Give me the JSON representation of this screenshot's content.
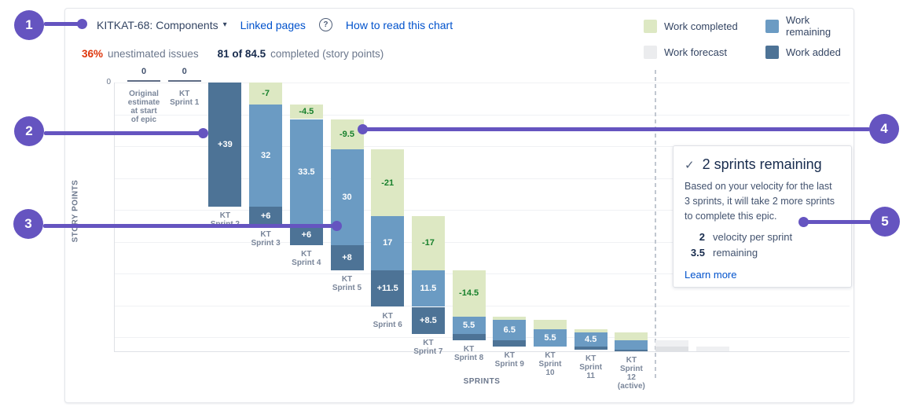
{
  "header": {
    "epic_selector": "KITKAT-68: Components",
    "linked_pages": "Linked pages",
    "how_to_read": "How to read this chart",
    "unestimated_pct": "36%",
    "unestimated_label": "unestimated issues",
    "completed_ratio": "81 of 84.5",
    "completed_label": "completed (story points)"
  },
  "icons": {
    "caret": "▾",
    "help": "?",
    "check": "✓"
  },
  "legend": {
    "items": [
      {
        "label": "Work completed",
        "color": "#dde8c3"
      },
      {
        "label": "Work remaining",
        "color": "#6b9bc3"
      },
      {
        "label": "Work forecast",
        "color": "#ebecee"
      },
      {
        "label": "Work added",
        "color": "#4d7396"
      }
    ]
  },
  "colors": {
    "completed": "#dde8c3",
    "remaining": "#6b9bc3",
    "added": "#4d7396",
    "forecast_light": "#eff0f2",
    "forecast_dark": "#dfe1e4",
    "completed_text": "#17802c",
    "segment_text": "#ffffff",
    "accent_purple": "#6554c0",
    "link": "#0052cc",
    "alert_red": "#de350b"
  },
  "chart_data": {
    "type": "bar",
    "subtype": "stacked-epic-burndown",
    "xlabel": "SPRINTS",
    "ylabel": "STORY POINTS",
    "y_axis": {
      "zero_label": "0",
      "direction": "down",
      "grid_step_points": 10,
      "max_points": 84.5
    },
    "totals": {
      "total_scope": 84.5,
      "completed": 81,
      "remaining": 3.5
    },
    "columns": [
      {
        "label": "Original\nestimate\nat start\nof epic",
        "type": "zero",
        "value_label": "0"
      },
      {
        "label": "KT\nSprint 1",
        "type": "zero",
        "value_label": "0"
      },
      {
        "label": "KT\nSprint 2",
        "type": "bar",
        "segments": [
          {
            "kind": "added",
            "from": 0,
            "to": 39,
            "label": "+39"
          }
        ]
      },
      {
        "label": "KT\nSprint 3",
        "type": "bar",
        "segments": [
          {
            "kind": "completed",
            "from": 0,
            "to": 7,
            "label": "-7"
          },
          {
            "kind": "remaining",
            "from": 7,
            "to": 39,
            "label": "32"
          },
          {
            "kind": "added",
            "from": 39,
            "to": 45,
            "label": "+6"
          }
        ]
      },
      {
        "label": "KT\nSprint 4",
        "type": "bar",
        "segments": [
          {
            "kind": "completed",
            "from": 7,
            "to": 11.5,
            "label": "-4.5"
          },
          {
            "kind": "remaining",
            "from": 11.5,
            "to": 45,
            "label": "33.5"
          },
          {
            "kind": "added",
            "from": 45,
            "to": 51,
            "label": "+6"
          }
        ]
      },
      {
        "label": "KT\nSprint 5",
        "type": "bar",
        "segments": [
          {
            "kind": "completed",
            "from": 11.5,
            "to": 21,
            "label": "-9.5"
          },
          {
            "kind": "remaining",
            "from": 21,
            "to": 51,
            "label": "30"
          },
          {
            "kind": "added",
            "from": 51,
            "to": 59,
            "label": "+8"
          }
        ]
      },
      {
        "label": "KT\nSprint 6",
        "type": "bar",
        "segments": [
          {
            "kind": "completed",
            "from": 21,
            "to": 42,
            "label": "-21"
          },
          {
            "kind": "remaining",
            "from": 42,
            "to": 59,
            "label": "17"
          },
          {
            "kind": "added",
            "from": 59,
            "to": 70.5,
            "label": "+11.5"
          }
        ]
      },
      {
        "label": "KT\nSprint 7",
        "type": "bar",
        "segments": [
          {
            "kind": "completed",
            "from": 42,
            "to": 59,
            "label": "-17"
          },
          {
            "kind": "remaining",
            "from": 59,
            "to": 70.5,
            "label": "11.5"
          },
          {
            "kind": "added",
            "from": 70.5,
            "to": 79,
            "label": "+8.5"
          }
        ]
      },
      {
        "label": "KT\nSprint 8",
        "type": "bar",
        "segments": [
          {
            "kind": "completed",
            "from": 59,
            "to": 73.5,
            "label": "-14.5"
          },
          {
            "kind": "remaining",
            "from": 73.5,
            "to": 79,
            "label": "5.5"
          },
          {
            "kind": "added",
            "from": 79,
            "to": 81,
            "label": ""
          }
        ]
      },
      {
        "label": "KT\nSprint 9",
        "type": "bar",
        "segments": [
          {
            "kind": "completed",
            "from": 73.5,
            "to": 74.5,
            "label": ""
          },
          {
            "kind": "remaining",
            "from": 74.5,
            "to": 81,
            "label": "6.5"
          },
          {
            "kind": "added",
            "from": 81,
            "to": 83,
            "label": ""
          }
        ]
      },
      {
        "label": "KT\nSprint\n10",
        "type": "bar",
        "segments": [
          {
            "kind": "completed",
            "from": 74.5,
            "to": 77.5,
            "label": ""
          },
          {
            "kind": "remaining",
            "from": 77.5,
            "to": 83,
            "label": "5.5"
          }
        ]
      },
      {
        "label": "KT\nSprint\n11",
        "type": "bar",
        "segments": [
          {
            "kind": "completed",
            "from": 77.5,
            "to": 78.5,
            "label": ""
          },
          {
            "kind": "remaining",
            "from": 78.5,
            "to": 83,
            "label": "4.5"
          },
          {
            "kind": "added",
            "from": 83,
            "to": 84,
            "label": ""
          }
        ]
      },
      {
        "label": "KT\nSprint\n12\n(active)",
        "type": "bar",
        "segments": [
          {
            "kind": "completed",
            "from": 78.5,
            "to": 81,
            "label": ""
          },
          {
            "kind": "remaining",
            "from": 81,
            "to": 84,
            "label": ""
          },
          {
            "kind": "added",
            "from": 84,
            "to": 84.5,
            "label": ""
          }
        ]
      }
    ],
    "forecast_bars": [
      {
        "segments": [
          {
            "from": 81,
            "to": 83,
            "shade": "light"
          },
          {
            "from": 83,
            "to": 84.5,
            "shade": "dark"
          }
        ]
      },
      {
        "segments": [
          {
            "from": 83,
            "to": 84.5,
            "shade": "light"
          }
        ]
      }
    ]
  },
  "insight": {
    "title": "2 sprints remaining",
    "body": "Based on your velocity for the last 3 sprints, it will take 2 more sprints to complete this epic.",
    "stats": [
      {
        "value": "2",
        "label": "velocity per sprint"
      },
      {
        "value": "3.5",
        "label": "remaining"
      }
    ],
    "link": "Learn more"
  },
  "callouts": {
    "numbers": [
      "1",
      "2",
      "3",
      "4",
      "5"
    ]
  }
}
